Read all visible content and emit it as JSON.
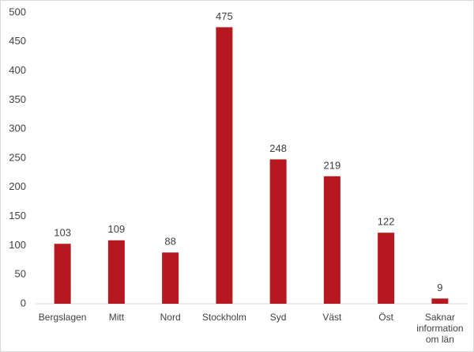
{
  "chart_data": {
    "type": "bar",
    "categories": [
      "Bergslagen",
      "Mitt",
      "Nord",
      "Stockholm",
      "Syd",
      "Väst",
      "Öst",
      "Saknar information om län"
    ],
    "values": [
      103,
      109,
      88,
      475,
      248,
      219,
      122,
      9
    ],
    "color": "#b5191f",
    "ylim": [
      0,
      500
    ],
    "yticks": [
      0,
      50,
      100,
      150,
      200,
      250,
      300,
      350,
      400,
      450,
      500
    ],
    "grid": false
  }
}
